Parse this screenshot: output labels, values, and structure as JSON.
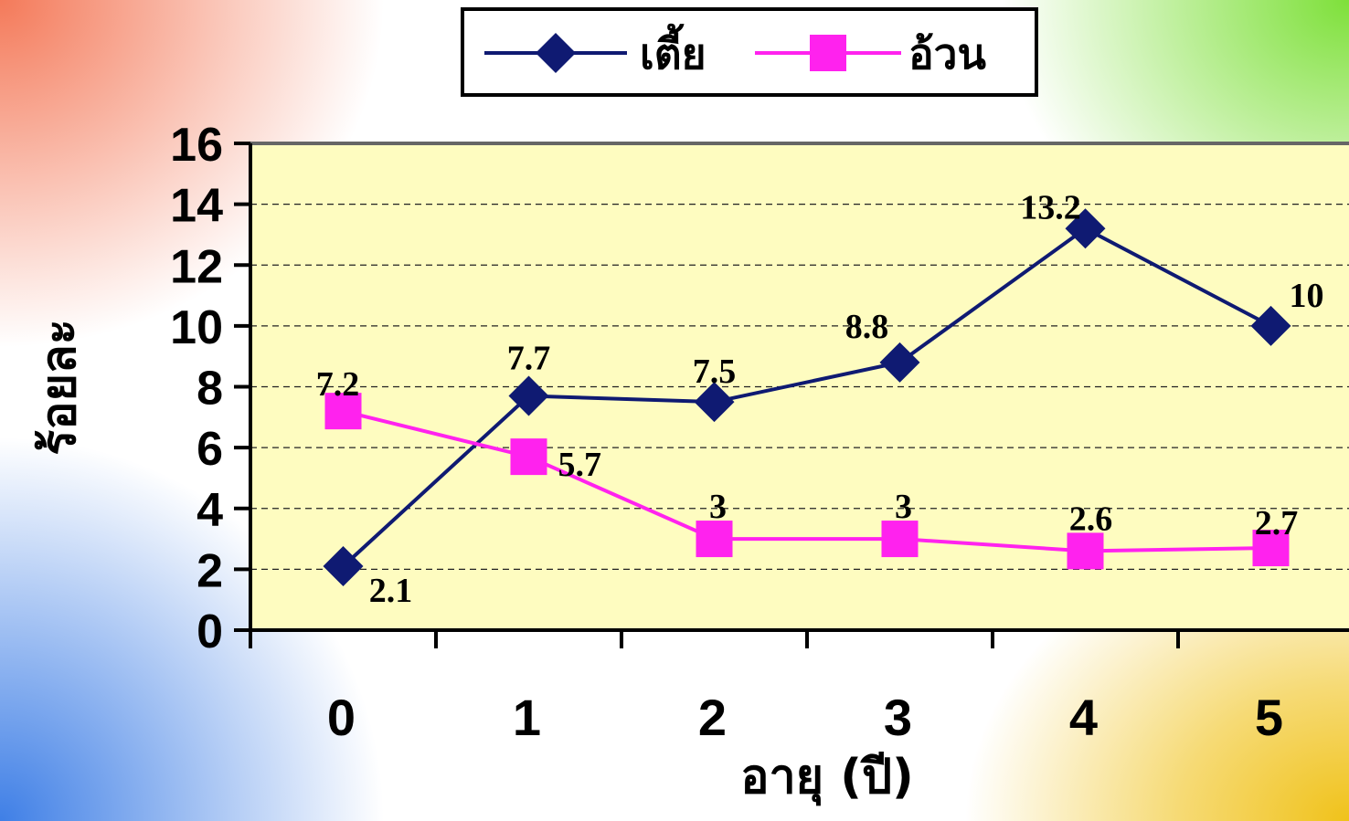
{
  "chart_data": {
    "type": "line",
    "categories": [
      "0",
      "1",
      "2",
      "3",
      "4",
      "5"
    ],
    "series": [
      {
        "name": "เตี้ย",
        "values": [
          2.1,
          7.7,
          7.5,
          8.8,
          13.2,
          10
        ],
        "labels": [
          "2.1",
          "7.7",
          "7.5",
          "8.8",
          "13.2",
          "10"
        ],
        "color": "#0f1a72",
        "marker": "diamond"
      },
      {
        "name": "อ้วน",
        "values": [
          7.2,
          5.7,
          3,
          3,
          2.6,
          2.7
        ],
        "labels": [
          "7.2",
          "5.7",
          "3",
          "3",
          "2.6",
          "2.7"
        ],
        "color": "#ff22ee",
        "marker": "square"
      }
    ],
    "xlabel": "อายุ (ปี)",
    "ylabel": "ร้อยละ",
    "ylim": [
      0,
      16
    ],
    "yticks": [
      "0",
      "2",
      "4",
      "6",
      "8",
      "10",
      "12",
      "14",
      "16"
    ],
    "grid": true,
    "legend_position": "top-center",
    "plot_background": "#fefcc0"
  }
}
